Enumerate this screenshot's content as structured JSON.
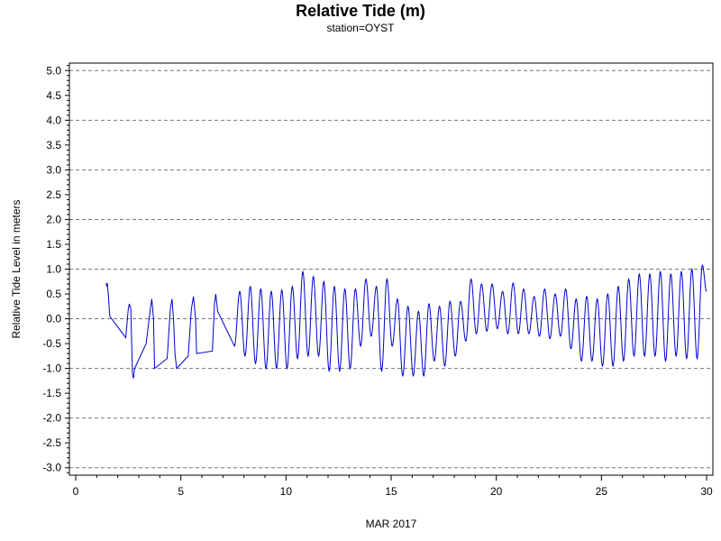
{
  "chart_data": {
    "type": "line",
    "title": "Relative Tide (m)",
    "subtitle": "station=OYST",
    "xlabel": "MAR 2017",
    "ylabel": "Relative Tide Level in meters",
    "xlim": [
      -0.3,
      30.3
    ],
    "ylim": [
      -3.15,
      5.15
    ],
    "x_ticks": [
      0,
      5,
      10,
      15,
      20,
      25,
      30
    ],
    "y_ticks": [
      -3.0,
      -2.5,
      -2.0,
      -1.5,
      -1.0,
      -0.5,
      0.0,
      0.5,
      1.0,
      1.5,
      2.0,
      2.5,
      3.0,
      3.5,
      4.0,
      4.5,
      5.0
    ],
    "y_gridlines": [
      -3.0,
      -2.0,
      -1.0,
      0.0,
      1.0,
      2.0,
      3.0,
      4.0,
      5.0
    ],
    "grid": "dashed horizontal at whole meters",
    "line_color": "#0000cc",
    "series": [
      {
        "values": [
          [
            1.45,
            0.72
          ],
          [
            1.48,
            0.65
          ],
          [
            1.5,
            0.72
          ],
          [
            1.55,
            0.5
          ],
          [
            1.62,
            0.05
          ],
          [
            2.38,
            -0.38
          ],
          [
            2.5,
            0.2
          ],
          [
            2.55,
            0.3
          ],
          [
            2.62,
            0.2
          ],
          [
            2.7,
            -1.12
          ],
          [
            2.75,
            -1.2
          ],
          [
            2.8,
            -1.0
          ],
          [
            3.35,
            -0.5
          ],
          [
            3.55,
            0.2
          ],
          [
            3.62,
            0.4
          ],
          [
            3.7,
            0.0
          ],
          [
            3.75,
            -1.0
          ],
          [
            4.35,
            -0.8
          ],
          [
            4.5,
            0.2
          ],
          [
            4.58,
            0.4
          ],
          [
            4.65,
            0.0
          ],
          [
            4.72,
            -0.7
          ],
          [
            4.8,
            -1.0
          ],
          [
            5.35,
            -0.75
          ],
          [
            5.5,
            0.2
          ],
          [
            5.6,
            0.45
          ],
          [
            5.7,
            0.0
          ],
          [
            5.75,
            -0.7
          ],
          [
            6.5,
            -0.65
          ],
          [
            6.6,
            0.3
          ],
          [
            6.66,
            0.5
          ],
          [
            6.75,
            0.15
          ],
          [
            7.55,
            -0.55
          ]
        ],
        "oscillation_from_day_7_6": {
          "period_days": 0.52,
          "samples": [
            [
              7.8,
              0.55
            ],
            [
              8.05,
              -0.75
            ],
            [
              8.3,
              0.65
            ],
            [
              8.55,
              -0.9
            ],
            [
              8.8,
              0.6
            ],
            [
              9.05,
              -1.0
            ],
            [
              9.3,
              0.55
            ],
            [
              9.55,
              -1.0
            ],
            [
              9.8,
              0.58
            ],
            [
              10.05,
              -1.0
            ],
            [
              10.3,
              0.65
            ],
            [
              10.55,
              -0.8
            ],
            [
              10.8,
              0.95
            ],
            [
              11.05,
              -0.75
            ],
            [
              11.3,
              0.85
            ],
            [
              11.55,
              -0.75
            ],
            [
              11.8,
              0.75
            ],
            [
              12.05,
              -1.05
            ],
            [
              12.3,
              0.65
            ],
            [
              12.55,
              -1.05
            ],
            [
              12.8,
              0.6
            ],
            [
              13.05,
              -1.0
            ],
            [
              13.3,
              0.6
            ],
            [
              13.55,
              -0.55
            ],
            [
              13.8,
              0.8
            ],
            [
              14.05,
              -0.35
            ],
            [
              14.3,
              0.65
            ],
            [
              14.55,
              -1.05
            ],
            [
              14.8,
              0.8
            ],
            [
              15.05,
              -0.55
            ],
            [
              15.3,
              0.4
            ],
            [
              15.55,
              -1.15
            ],
            [
              15.8,
              0.25
            ],
            [
              16.05,
              -1.15
            ],
            [
              16.3,
              0.15
            ],
            [
              16.55,
              -1.15
            ],
            [
              16.8,
              0.3
            ],
            [
              17.05,
              -0.85
            ],
            [
              17.3,
              0.25
            ],
            [
              17.55,
              -0.95
            ],
            [
              17.8,
              0.35
            ],
            [
              18.05,
              -0.75
            ],
            [
              18.3,
              0.35
            ],
            [
              18.55,
              -0.45
            ],
            [
              18.8,
              0.8
            ],
            [
              19.05,
              -0.3
            ],
            [
              19.3,
              0.7
            ],
            [
              19.55,
              -0.25
            ],
            [
              19.8,
              0.7
            ],
            [
              20.05,
              -0.2
            ],
            [
              20.3,
              0.55
            ],
            [
              20.55,
              -0.3
            ],
            [
              20.8,
              0.72
            ],
            [
              21.05,
              -0.3
            ],
            [
              21.3,
              0.6
            ],
            [
              21.55,
              -0.3
            ],
            [
              21.8,
              0.45
            ],
            [
              22.05,
              -0.35
            ],
            [
              22.3,
              0.6
            ],
            [
              22.55,
              -0.4
            ],
            [
              22.8,
              0.5
            ],
            [
              23.05,
              -0.35
            ],
            [
              23.3,
              0.6
            ],
            [
              23.55,
              -0.6
            ],
            [
              23.8,
              0.4
            ],
            [
              24.05,
              -0.85
            ],
            [
              24.3,
              0.45
            ],
            [
              24.55,
              -0.85
            ],
            [
              24.8,
              0.4
            ],
            [
              25.05,
              -0.95
            ],
            [
              25.3,
              0.5
            ],
            [
              25.55,
              -0.95
            ],
            [
              25.8,
              0.65
            ],
            [
              26.05,
              -0.85
            ],
            [
              26.3,
              0.8
            ],
            [
              26.55,
              -0.75
            ],
            [
              26.8,
              0.9
            ],
            [
              27.05,
              -0.75
            ],
            [
              27.3,
              0.9
            ],
            [
              27.55,
              -0.75
            ],
            [
              27.8,
              0.95
            ],
            [
              28.05,
              -0.85
            ],
            [
              28.3,
              0.9
            ],
            [
              28.55,
              -0.75
            ],
            [
              28.8,
              0.95
            ],
            [
              29.05,
              -0.8
            ],
            [
              29.3,
              1.0
            ],
            [
              29.55,
              -0.8
            ],
            [
              29.8,
              1.08
            ],
            [
              30.0,
              0.55
            ]
          ]
        }
      }
    ]
  }
}
